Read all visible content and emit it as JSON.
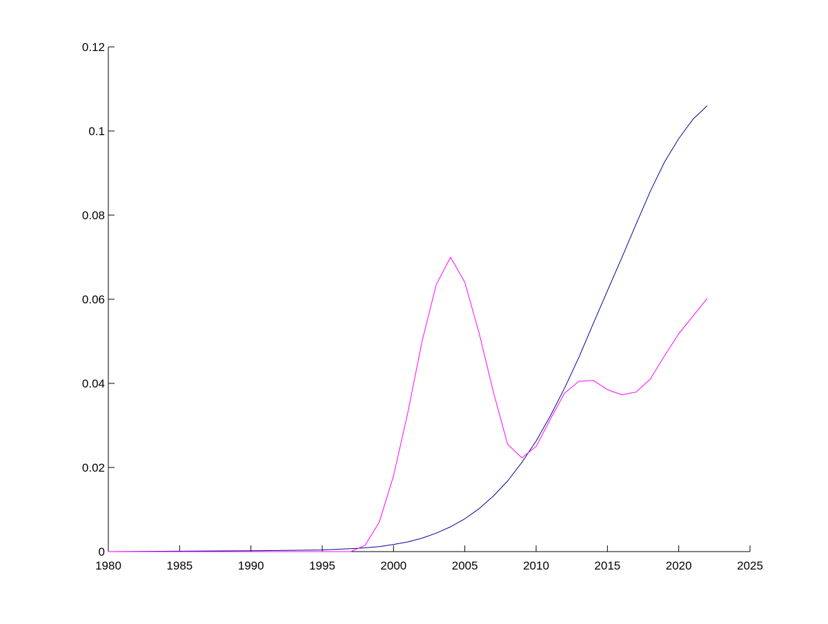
{
  "chart_data": {
    "type": "line",
    "title": "",
    "xlabel": "",
    "ylabel": "",
    "xlim": [
      1980,
      2025
    ],
    "ylim": [
      0,
      0.12
    ],
    "grid": false,
    "legend": "none",
    "x_ticks": [
      1980,
      1985,
      1990,
      1995,
      2000,
      2005,
      2010,
      2015,
      2020,
      2025
    ],
    "x_tick_labels": [
      "1980",
      "1985",
      "1990",
      "1995",
      "2000",
      "2005",
      "2010",
      "2015",
      "2020",
      "2025"
    ],
    "y_ticks": [
      0,
      0.02,
      0.04,
      0.06,
      0.08,
      0.1,
      0.12
    ],
    "y_tick_labels": [
      "0",
      "0.02",
      "0.04",
      "0.06",
      "0.08",
      "0.1",
      "0.12"
    ],
    "series": [
      {
        "color": "#00008b",
        "x": [
          1980,
          1985,
          1990,
          1995,
          1997,
          1998,
          1999,
          2000,
          2001,
          2002,
          2003,
          2004,
          2005,
          2006,
          2007,
          2008,
          2009,
          2010,
          2011,
          2012,
          2013,
          2014,
          2015,
          2016,
          2017,
          2018,
          2019,
          2020,
          2021,
          2022
        ],
        "values": [
          0,
          0.0001,
          0.0002,
          0.0004,
          0.0007,
          0.0009,
          0.0012,
          0.0017,
          0.0023,
          0.0032,
          0.0044,
          0.0059,
          0.0078,
          0.0102,
          0.0132,
          0.0168,
          0.0212,
          0.0263,
          0.0323,
          0.0389,
          0.0462,
          0.0542,
          0.062,
          0.0698,
          0.0778,
          0.0856,
          0.0926,
          0.0982,
          0.1028,
          0.106
        ]
      },
      {
        "color": "#ff00ff",
        "x": [
          1980,
          1997,
          1998,
          1999,
          2000,
          2001,
          2002,
          2003,
          2004,
          2005,
          2006,
          2007,
          2008,
          2009,
          2010,
          2011,
          2012,
          2013,
          2014,
          2015,
          2016,
          2017,
          2018,
          2019,
          2020,
          2021,
          2022
        ],
        "values": [
          0,
          0,
          0.0015,
          0.007,
          0.018,
          0.033,
          0.05,
          0.0635,
          0.07,
          0.064,
          0.052,
          0.038,
          0.0255,
          0.0223,
          0.025,
          0.0315,
          0.0377,
          0.0405,
          0.0407,
          0.0385,
          0.0373,
          0.0379,
          0.041,
          0.0465,
          0.0518,
          0.056,
          0.0602
        ]
      }
    ]
  }
}
